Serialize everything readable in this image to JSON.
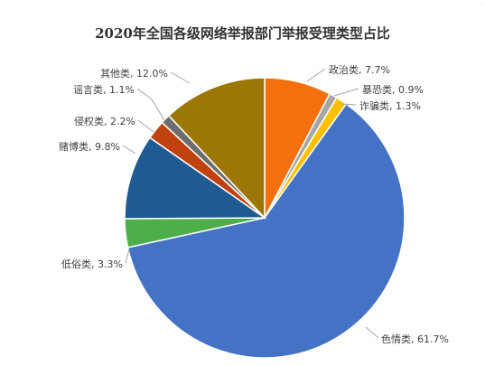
{
  "chart_data": {
    "type": "pie",
    "title": "2020年全国各级网络举报部门举报受理类型占比",
    "categories": [
      "政治类",
      "暴恐类",
      "诈骗类",
      "色情类",
      "低俗类",
      "赌博类",
      "侵权类",
      "谣言类",
      "其他类"
    ],
    "values": [
      7.7,
      0.9,
      1.3,
      61.7,
      3.3,
      9.8,
      2.2,
      1.1,
      12.0
    ],
    "data_labels": [
      "政治类, 7.7%",
      "暴恐类, 0.9%",
      "诈骗类, 1.3%",
      "色情类, 61.7%",
      "低俗类, 3.3%",
      "赌博类, 9.8%",
      "侵权类, 2.2%",
      "谣言类, 1.1%",
      "其他类, 12.0%"
    ],
    "colors": [
      "#f4700e",
      "#a5a5a5",
      "#ffc000",
      "#4472c4",
      "#4eaf4a",
      "#1f5b92",
      "#c0420f",
      "#6d6d6d",
      "#9c7706"
    ],
    "start_angle": "12 o'clock",
    "direction": "clockwise",
    "legend": "none"
  }
}
